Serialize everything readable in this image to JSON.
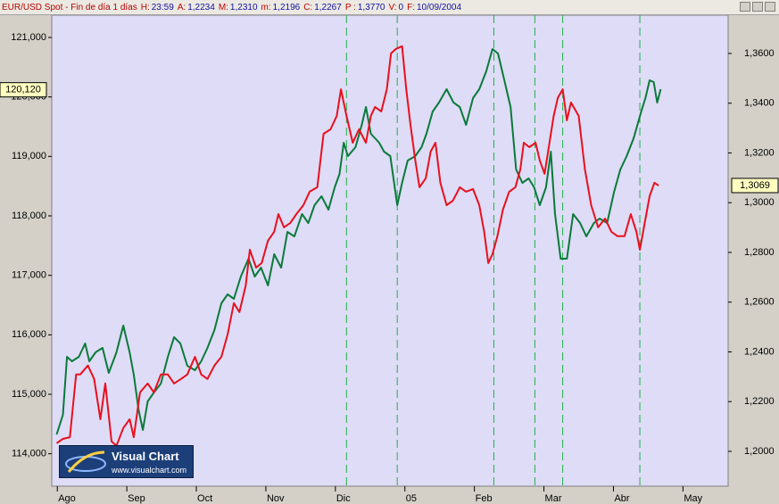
{
  "header": {
    "title": "EUR/USD Spot - Fin de día 1 días",
    "fields": [
      {
        "label": "H:",
        "value": "23:59"
      },
      {
        "label": "A:",
        "value": "1,2234"
      },
      {
        "label": "M:",
        "value": "1,2310"
      },
      {
        "label": "m:",
        "value": "1,2196"
      },
      {
        "label": "C:",
        "value": "1,2267"
      },
      {
        "label": "P :",
        "value": "1,3770"
      },
      {
        "label": "V:",
        "value": "0"
      },
      {
        "label": "F:",
        "value": "10/09/2004"
      }
    ]
  },
  "logo": {
    "title": "Visual Chart",
    "url": "www.visualchart.com"
  },
  "chart_data": {
    "type": "line",
    "xlim": [
      -0.08,
      9.65
    ],
    "xticks": [
      {
        "value": 0,
        "label": "Ago"
      },
      {
        "value": 1,
        "label": "Sep"
      },
      {
        "value": 2,
        "label": "Oct"
      },
      {
        "value": 3,
        "label": "Nov"
      },
      {
        "value": 4,
        "label": "Dic"
      },
      {
        "value": 5,
        "label": "05"
      },
      {
        "value": 6,
        "label": "Feb"
      },
      {
        "value": 7,
        "label": "Mar"
      },
      {
        "value": 8,
        "label": "Abr"
      },
      {
        "value": 9,
        "label": "May"
      }
    ],
    "ylim": [
      113455,
      121375
    ],
    "yticks": [
      {
        "value": 114000,
        "label": "114,000"
      },
      {
        "value": 115000,
        "label": "115,000"
      },
      {
        "value": 116000,
        "label": "116,000"
      },
      {
        "value": 117000,
        "label": "117,000"
      },
      {
        "value": 118000,
        "label": "118,000"
      },
      {
        "value": 119000,
        "label": "119,000"
      },
      {
        "value": 120000,
        "label": "120,000"
      },
      {
        "value": 121000,
        "label": "121,000"
      }
    ],
    "y2lim": [
      1.186,
      1.3754
    ],
    "y2ticks": [
      {
        "value": 1.2,
        "label": "1,2000"
      },
      {
        "value": 1.22,
        "label": "1,2200"
      },
      {
        "value": 1.24,
        "label": "1,2400"
      },
      {
        "value": 1.26,
        "label": "1,2600"
      },
      {
        "value": 1.28,
        "label": "1,2800"
      },
      {
        "value": 1.3,
        "label": "1,3000"
      },
      {
        "value": 1.32,
        "label": "1,3200"
      },
      {
        "value": 1.34,
        "label": "1,3400"
      },
      {
        "value": 1.36,
        "label": "1,3600"
      }
    ],
    "vertical_lines": [
      4.16,
      4.89,
      6.28,
      6.87,
      7.27,
      8.38
    ],
    "vertical_line_color": "#22b04a",
    "background": "#dedcf6",
    "last_value_labels": [
      {
        "axis": "y",
        "value": 120120,
        "label": "120,120"
      },
      {
        "axis": "y2",
        "value": 1.3069,
        "label": "1,3069"
      }
    ],
    "series": [
      {
        "color": "#0a7a3a",
        "axis": "y",
        "x": [
          -0.01,
          0.08,
          0.14,
          0.21,
          0.31,
          0.4,
          0.46,
          0.55,
          0.65,
          0.74,
          0.85,
          0.95,
          1.04,
          1.1,
          1.17,
          1.23,
          1.3,
          1.39,
          1.49,
          1.59,
          1.68,
          1.77,
          1.87,
          1.98,
          2.07,
          2.16,
          2.26,
          2.36,
          2.45,
          2.54,
          2.64,
          2.75,
          2.84,
          2.93,
          3.03,
          3.12,
          3.22,
          3.31,
          3.41,
          3.52,
          3.61,
          3.7,
          3.8,
          3.9,
          3.99,
          4.06,
          4.12,
          4.18,
          4.29,
          4.38,
          4.44,
          4.51,
          4.57,
          4.63,
          4.7,
          4.79,
          4.89,
          4.96,
          5.04,
          5.15,
          5.24,
          5.31,
          5.4,
          5.49,
          5.6,
          5.7,
          5.79,
          5.88,
          5.98,
          6.07,
          6.17,
          6.26,
          6.34,
          6.43,
          6.52,
          6.6,
          6.69,
          6.78,
          6.86,
          6.94,
          7.03,
          7.1,
          7.16,
          7.24,
          7.33,
          7.42,
          7.52,
          7.61,
          7.72,
          7.8,
          7.91,
          8.01,
          8.1,
          8.19,
          8.29,
          8.4,
          8.46,
          8.52,
          8.58,
          8.63,
          8.68
        ],
        "values": [
          114325,
          114655,
          115630,
          115555,
          115630,
          115855,
          115555,
          115705,
          115780,
          115360,
          115705,
          116155,
          115705,
          115330,
          114730,
          114400,
          114880,
          115030,
          115180,
          115630,
          115960,
          115855,
          115480,
          115405,
          115555,
          115780,
          116080,
          116530,
          116680,
          116605,
          116980,
          117280,
          116980,
          117130,
          116830,
          117355,
          117130,
          117730,
          117655,
          118030,
          117880,
          118180,
          118330,
          118105,
          118480,
          118705,
          119230,
          119005,
          119155,
          119530,
          119830,
          119380,
          119305,
          119230,
          119080,
          119005,
          118180,
          118555,
          118930,
          119005,
          119155,
          119380,
          119755,
          119905,
          120130,
          119905,
          119830,
          119530,
          119980,
          120130,
          120430,
          120805,
          120730,
          120280,
          119830,
          118780,
          118555,
          118630,
          118480,
          118180,
          118480,
          119080,
          118030,
          117280,
          117280,
          118030,
          117880,
          117655,
          117880,
          117955,
          117880,
          118405,
          118780,
          119005,
          119305,
          119755,
          119980,
          120280,
          120250,
          119905,
          120130
        ]
      },
      {
        "color": "#e8101e",
        "axis": "y2",
        "x": [
          -0.01,
          0.08,
          0.18,
          0.27,
          0.33,
          0.44,
          0.53,
          0.62,
          0.69,
          0.78,
          0.85,
          0.95,
          1.04,
          1.1,
          1.19,
          1.3,
          1.39,
          1.49,
          1.59,
          1.68,
          1.78,
          1.87,
          1.98,
          2.07,
          2.16,
          2.26,
          2.36,
          2.45,
          2.54,
          2.62,
          2.71,
          2.77,
          2.86,
          2.94,
          3.03,
          3.12,
          3.18,
          3.26,
          3.35,
          3.44,
          3.54,
          3.63,
          3.74,
          3.83,
          3.93,
          4.02,
          4.08,
          4.16,
          4.25,
          4.34,
          4.44,
          4.51,
          4.57,
          4.66,
          4.74,
          4.8,
          4.87,
          4.96,
          5.02,
          5.08,
          5.15,
          5.21,
          5.3,
          5.37,
          5.44,
          5.51,
          5.6,
          5.69,
          5.79,
          5.88,
          5.98,
          6.07,
          6.14,
          6.2,
          6.26,
          6.33,
          6.41,
          6.5,
          6.59,
          6.66,
          6.71,
          6.79,
          6.88,
          6.94,
          7.01,
          7.07,
          7.14,
          7.2,
          7.27,
          7.33,
          7.39,
          7.5,
          7.59,
          7.68,
          7.78,
          7.88,
          7.97,
          8.06,
          8.16,
          8.25,
          8.33,
          8.38,
          8.45,
          8.52,
          8.59,
          8.65
        ],
        "values": [
          1.2033,
          1.205,
          1.2057,
          1.2309,
          1.2309,
          1.2345,
          1.2291,
          1.2129,
          1.2273,
          1.204,
          1.2022,
          1.2094,
          1.2129,
          1.2057,
          1.2237,
          1.2273,
          1.2237,
          1.2309,
          1.2309,
          1.2273,
          1.2291,
          1.2309,
          1.238,
          1.2309,
          1.2291,
          1.2345,
          1.238,
          1.247,
          1.2596,
          1.256,
          1.2667,
          1.2811,
          1.2739,
          1.2757,
          1.2847,
          1.2883,
          1.2954,
          1.2901,
          1.2918,
          1.2954,
          1.299,
          1.3044,
          1.3062,
          1.3277,
          1.3295,
          1.3349,
          1.3456,
          1.3349,
          1.3241,
          1.3295,
          1.3241,
          1.3349,
          1.3385,
          1.3367,
          1.3456,
          1.36,
          1.3618,
          1.3629,
          1.3456,
          1.3313,
          1.317,
          1.3062,
          1.3098,
          1.3205,
          1.3241,
          1.308,
          1.299,
          1.3008,
          1.3062,
          1.3044,
          1.3055,
          1.299,
          1.2883,
          1.2757,
          1.2793,
          1.2865,
          1.2972,
          1.3044,
          1.3062,
          1.3134,
          1.3241,
          1.3223,
          1.3241,
          1.317,
          1.3116,
          1.3223,
          1.3349,
          1.3421,
          1.3456,
          1.3331,
          1.3403,
          1.3349,
          1.3134,
          1.299,
          1.2901,
          1.2936,
          1.2883,
          1.2865,
          1.2865,
          1.2954,
          1.2883,
          1.2811,
          1.2918,
          1.3026,
          1.308,
          1.3069
        ]
      }
    ]
  }
}
